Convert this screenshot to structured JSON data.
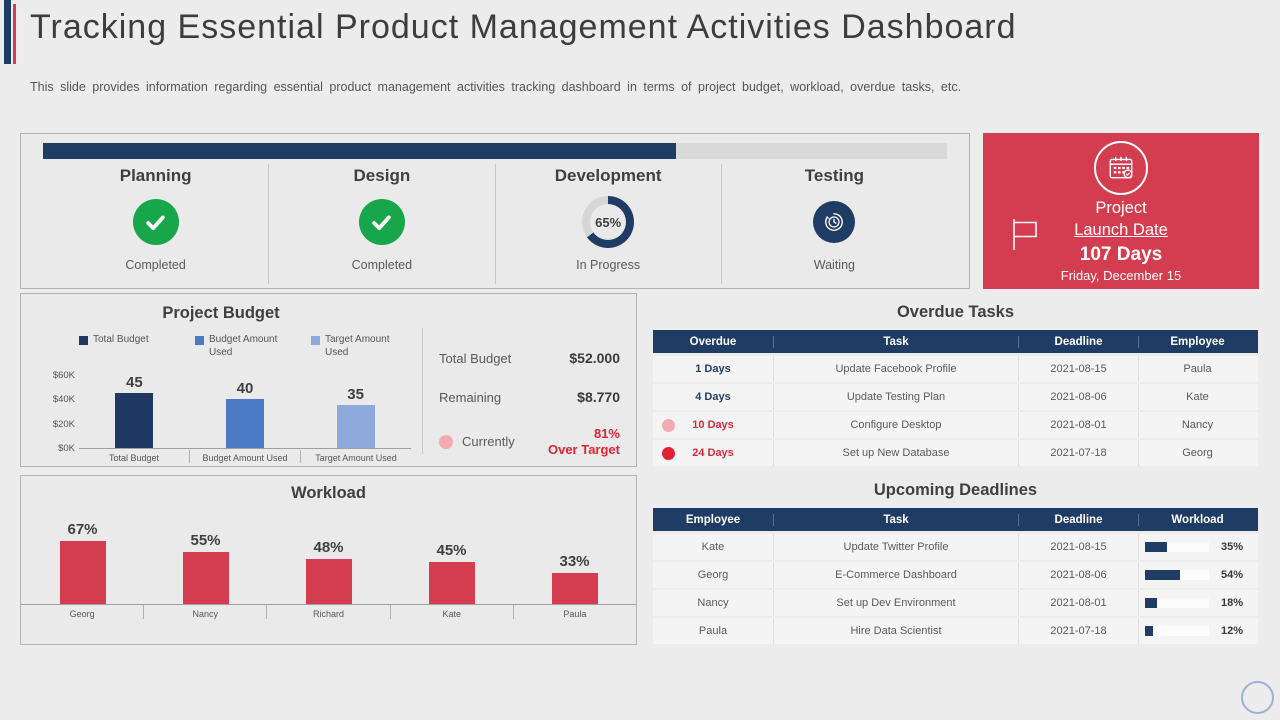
{
  "colors": {
    "navy": "#1f3c64",
    "bar_dark_navy": "#1f3864",
    "bar_mid_blue": "#4d7ac7",
    "bar_light_blue": "#8ea9db",
    "red": "#d43d4f",
    "alert_red": "#dc2535",
    "green": "#17a64a",
    "pink_dot": "#f2abb2",
    "red_dot": "#e52030",
    "track_gray": "#d9d9d9"
  },
  "header": {
    "title": "Tracking Essential Product Management Activities Dashboard",
    "subtitle": "This slide provides information regarding essential product management activities tracking dashboard in terms of project budget, workload, overdue tasks, etc."
  },
  "phases": {
    "progress_percent": 70,
    "items": [
      {
        "name": "Planning",
        "status": "Completed",
        "icon": "check-circle-icon"
      },
      {
        "name": "Design",
        "status": "Completed",
        "icon": "check-circle-icon"
      },
      {
        "name": "Development",
        "status": "In Progress",
        "icon": "donut-progress",
        "percent": 65,
        "percent_label": "65%"
      },
      {
        "name": "Testing",
        "status": "Waiting",
        "icon": "waiting-clock-icon"
      }
    ]
  },
  "launch_card": {
    "line1": "Project",
    "line2": "Launch Date",
    "line3": "107 Days",
    "line4": "Friday, December 15"
  },
  "chart_data": [
    {
      "type": "bar",
      "title": "Project Budget",
      "categories": [
        "Total Budget",
        "Budget Amount Used",
        "Target Amount Used"
      ],
      "values": [
        45,
        40,
        35
      ],
      "value_labels": [
        "45",
        "40",
        "35"
      ],
      "bar_colors": [
        "#1f3864",
        "#4d7ac7",
        "#8ea9db"
      ],
      "legend": [
        {
          "label": "Total Budget",
          "color": "#1f3864"
        },
        {
          "label": "Budget Amount Used",
          "color": "#4d7ac7"
        },
        {
          "label": "Target Amount Used",
          "color": "#8ea9db"
        }
      ],
      "ylim": [
        0,
        60
      ],
      "yticks": [
        "$60K",
        "$40K",
        "$20K",
        "$0K"
      ],
      "grid": false,
      "legend_position": "top",
      "stats": [
        {
          "label": "Total Budget",
          "value": "$52.000"
        },
        {
          "label": "Remaining",
          "value": "$8.770"
        },
        {
          "label": "Currently",
          "value": "81%",
          "value2": "Over Target"
        }
      ]
    },
    {
      "type": "bar",
      "title": "Workload",
      "categories": [
        "Georg",
        "Nancy",
        "Richard",
        "Kate",
        "Paula"
      ],
      "values": [
        67,
        55,
        48,
        45,
        33
      ],
      "value_labels": [
        "67%",
        "55%",
        "48%",
        "45%",
        "33%"
      ],
      "bar_color": "#d43d4f",
      "ylim": [
        0,
        100
      ],
      "grid": false
    },
    {
      "type": "table",
      "title": "Overdue Tasks",
      "columns": [
        "Overdue",
        "Task",
        "Deadline",
        "Employee"
      ],
      "rows": [
        {
          "overdue": "1 Days",
          "style": "navy",
          "dot": null,
          "task": "Update Facebook Profile",
          "deadline": "2021-08-15",
          "employee": "Paula"
        },
        {
          "overdue": "4 Days",
          "style": "navy",
          "dot": null,
          "task": "Update Testing Plan",
          "deadline": "2021-08-06",
          "employee": "Kate"
        },
        {
          "overdue": "10 Days",
          "style": "red",
          "dot": "pink",
          "task": "Configure Desktop",
          "deadline": "2021-08-01",
          "employee": "Nancy"
        },
        {
          "overdue": "24 Days",
          "style": "red",
          "dot": "red",
          "task": "Set up New Database",
          "deadline": "2021-07-18",
          "employee": "Georg"
        }
      ]
    },
    {
      "type": "table",
      "title": "Upcoming Deadlines",
      "columns": [
        "Employee",
        "Task",
        "Deadline",
        "Workload"
      ],
      "rows": [
        {
          "employee": "Kate",
          "task": "Update Twitter Profile",
          "deadline": "2021-08-15",
          "workload": 35,
          "workload_label": "35%"
        },
        {
          "employee": "Georg",
          "task": "E-Commerce Dashboard",
          "deadline": "2021-08-06",
          "workload": 54,
          "workload_label": "54%"
        },
        {
          "employee": "Nancy",
          "task": "Set up Dev Environment",
          "deadline": "2021-08-01",
          "workload": 18,
          "workload_label": "18%"
        },
        {
          "employee": "Paula",
          "task": "Hire Data Scientist",
          "deadline": "2021-07-18",
          "workload": 12,
          "workload_label": "12%"
        }
      ]
    }
  ]
}
